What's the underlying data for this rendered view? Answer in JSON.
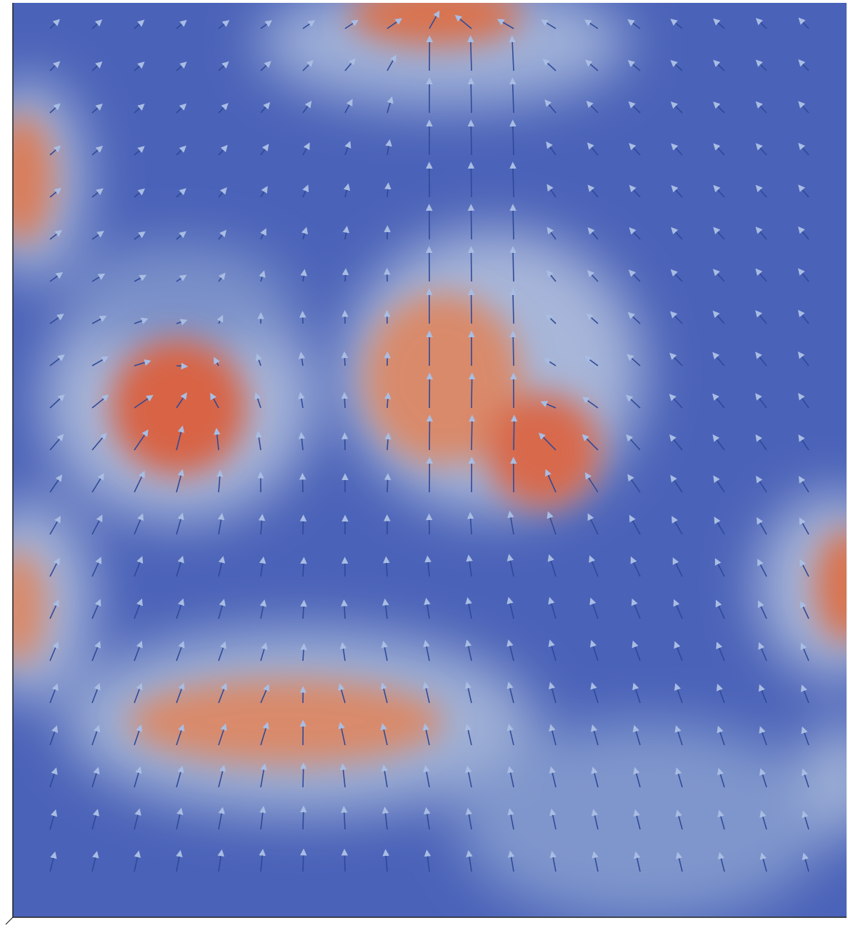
{
  "figure": {
    "description_type": "vector-field-over-scalar-heatmap",
    "colormap": {
      "name": "cool-to-warm",
      "low": "#3b4cc0",
      "mid": "#dddddd",
      "high": "#d75a3c"
    },
    "background": "#ffffff",
    "arrow_color": "#8fa8d8",
    "arrow_shaft_color": "#3d5aa6",
    "hotspots": [
      {
        "id": "top-center",
        "intensity": 0.9
      },
      {
        "id": "left-edge-upper",
        "intensity": 0.75
      },
      {
        "id": "left-lobe",
        "intensity": 1.0
      },
      {
        "id": "center-right-lobe",
        "intensity": 0.95
      },
      {
        "id": "center-band",
        "intensity": 0.55
      },
      {
        "id": "left-edge-lower",
        "intensity": 0.7
      },
      {
        "id": "right-edge",
        "intensity": 0.75
      },
      {
        "id": "bottom-band",
        "intensity": 0.7
      }
    ]
  }
}
